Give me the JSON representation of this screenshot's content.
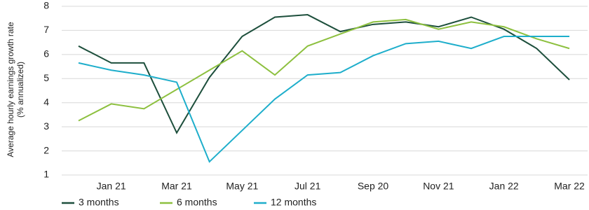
{
  "chart_data": {
    "type": "line",
    "y_label": [
      "Average hourly earnings growth rate",
      "(% annualized)"
    ],
    "categories": [
      null,
      "Jan 21",
      null,
      "Mar 21",
      null,
      "May 21",
      null,
      "Jul 21",
      null,
      "Sep 20",
      null,
      "Nov 21",
      null,
      "Jan 22",
      null,
      "Mar 22"
    ],
    "series": [
      {
        "name": "3 months",
        "color": "#1d4f3c",
        "values": [
          6.35,
          5.65,
          5.65,
          2.75,
          5.05,
          6.75,
          7.55,
          7.65,
          6.95,
          7.25,
          7.35,
          7.15,
          7.55,
          7.05,
          6.25,
          4.95
        ]
      },
      {
        "name": "6 months",
        "color": "#8dc03f",
        "values": [
          3.25,
          3.95,
          3.75,
          4.55,
          5.35,
          6.15,
          5.15,
          6.35,
          6.85,
          7.35,
          7.45,
          7.05,
          7.35,
          7.15,
          6.65,
          6.25
        ]
      },
      {
        "name": "12 months",
        "color": "#1eaecb",
        "values": [
          5.65,
          5.35,
          5.15,
          4.85,
          1.55,
          2.85,
          4.15,
          5.15,
          5.25,
          5.95,
          6.45,
          6.55,
          6.25,
          6.75,
          6.75,
          6.75
        ]
      }
    ],
    "ylim": [
      1,
      8
    ],
    "yticks": [
      1,
      2,
      3,
      4,
      5,
      6,
      7,
      8
    ],
    "grid": true
  }
}
